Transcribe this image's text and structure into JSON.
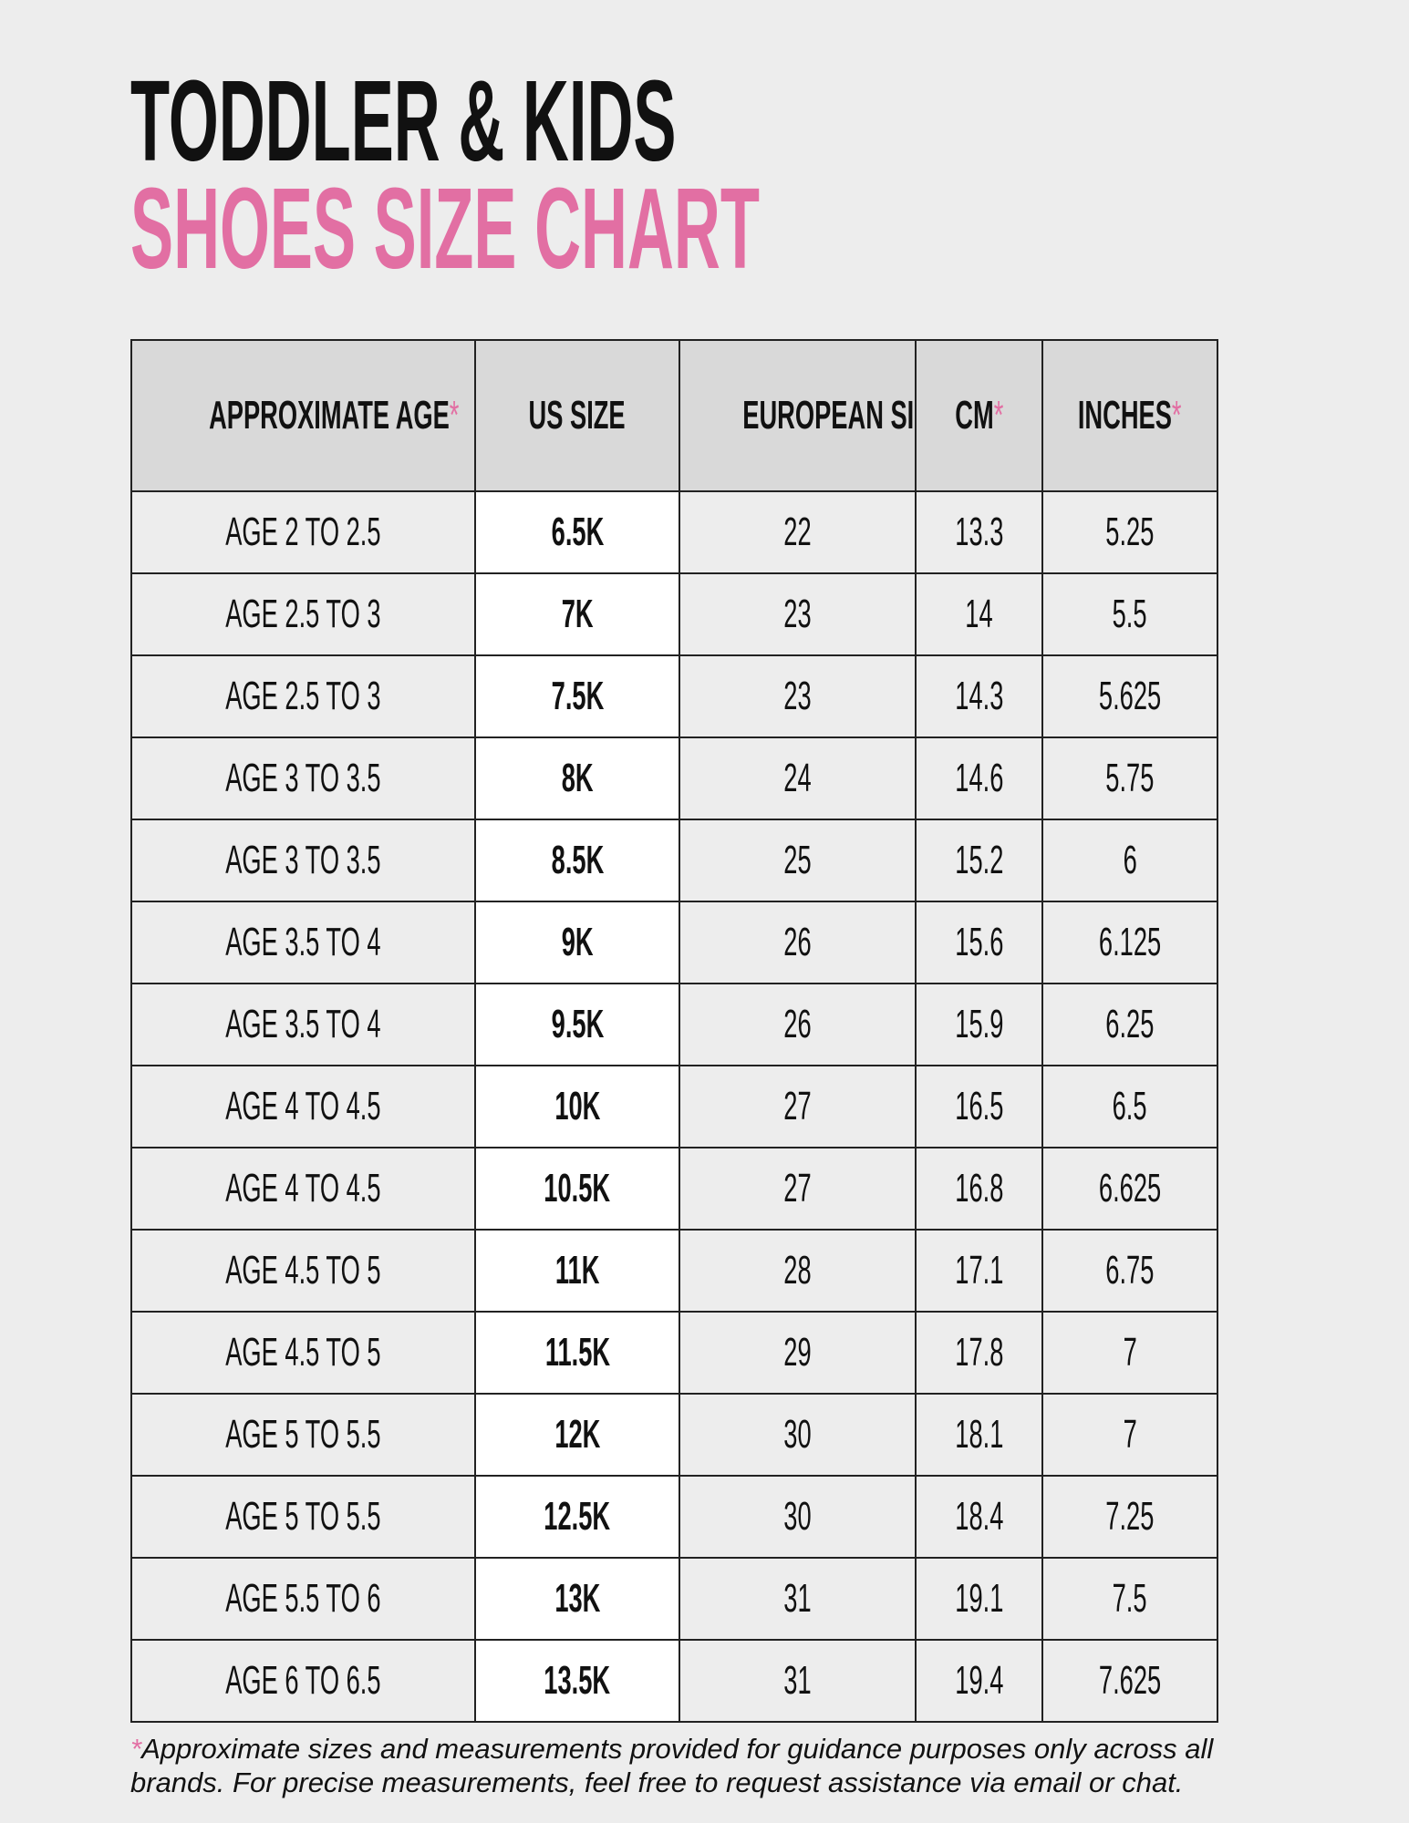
{
  "title": {
    "line1": "TODDLER & KIDS",
    "line2": "SHOES SIZE CHART"
  },
  "colors": {
    "accent": "#e26fa3",
    "background": "#ededed",
    "header_bg": "#d9d9d9"
  },
  "table": {
    "headers": [
      {
        "label": "APPROXIMATE AGE",
        "asterisk": "*"
      },
      {
        "label": "US SIZE",
        "asterisk": ""
      },
      {
        "label": "EUROPEAN SIZE",
        "asterisk": ""
      },
      {
        "label": "CM",
        "asterisk": "*"
      },
      {
        "label": "INCHES",
        "asterisk": "*"
      }
    ],
    "rows": [
      [
        "AGE 2 TO 2.5",
        "6.5K",
        "22",
        "13.3",
        "5.25"
      ],
      [
        "AGE 2.5 TO 3",
        "7K",
        "23",
        "14",
        "5.5"
      ],
      [
        "AGE 2.5 TO 3",
        "7.5K",
        "23",
        "14.3",
        "5.625"
      ],
      [
        "AGE 3 TO 3.5",
        "8K",
        "24",
        "14.6",
        "5.75"
      ],
      [
        "AGE 3 TO 3.5",
        "8.5K",
        "25",
        "15.2",
        "6"
      ],
      [
        "AGE 3.5 TO 4",
        "9K",
        "26",
        "15.6",
        "6.125"
      ],
      [
        "AGE 3.5 TO 4",
        "9.5K",
        "26",
        "15.9",
        "6.25"
      ],
      [
        "AGE 4 TO 4.5",
        "10K",
        "27",
        "16.5",
        "6.5"
      ],
      [
        "AGE 4 TO 4.5",
        "10.5K",
        "27",
        "16.8",
        "6.625"
      ],
      [
        "AGE 4.5 TO 5",
        "11K",
        "28",
        "17.1",
        "6.75"
      ],
      [
        "AGE 4.5 TO 5",
        "11.5K",
        "29",
        "17.8",
        "7"
      ],
      [
        "AGE 5 TO 5.5",
        "12K",
        "30",
        "18.1",
        "7"
      ],
      [
        "AGE 5 TO 5.5",
        "12.5K",
        "30",
        "18.4",
        "7.25"
      ],
      [
        "AGE 5.5 TO 6",
        "13K",
        "31",
        "19.1",
        "7.5"
      ],
      [
        "AGE 6 TO 6.5",
        "13.5K",
        "31",
        "19.4",
        "7.625"
      ]
    ]
  },
  "footnote": {
    "asterisk": "*",
    "text": "Approximate sizes and measurements provided for guidance purposes only across all brands. For precise measurements, feel free to request assistance via email or chat."
  }
}
